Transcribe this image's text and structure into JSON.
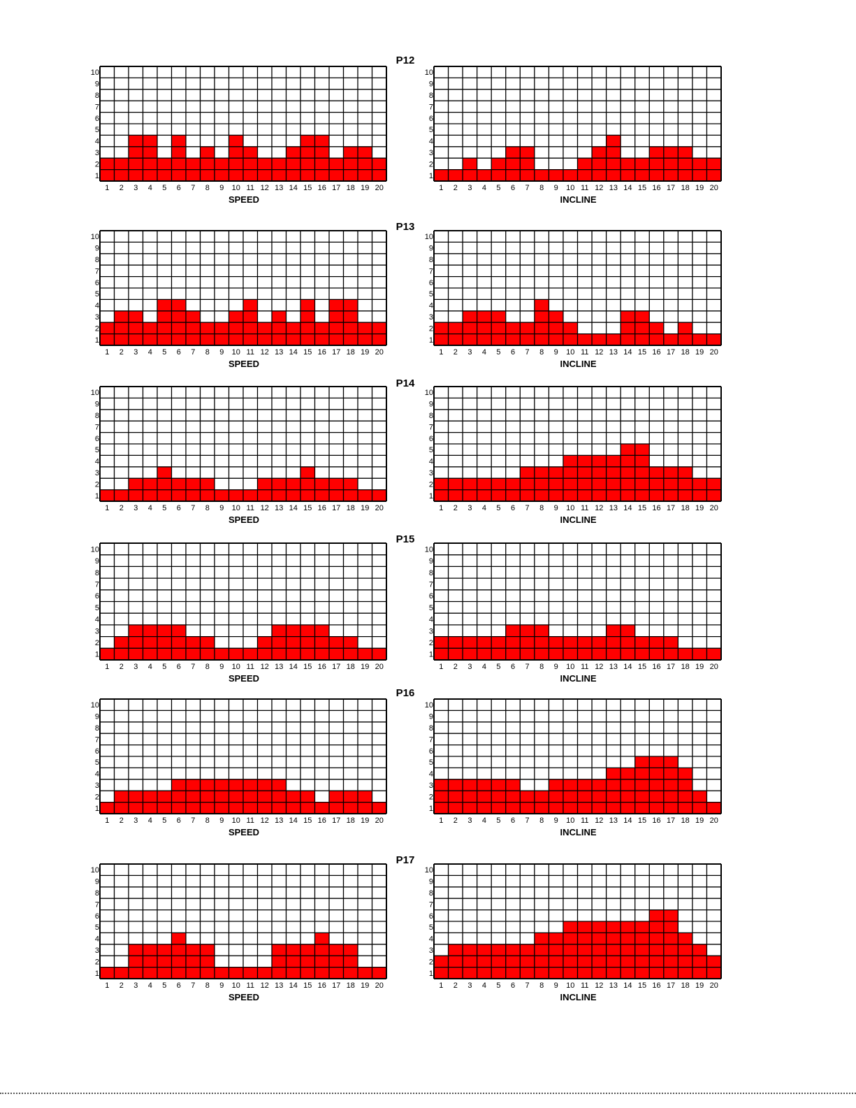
{
  "colors": {
    "fill": "#ff0000",
    "grid": "#000000",
    "text": "#000000"
  },
  "y_ticks": [
    "1",
    "2",
    "3",
    "4",
    "5",
    "6",
    "7",
    "8",
    "9",
    "10"
  ],
  "x_ticks": [
    "1",
    "2",
    "3",
    "4",
    "5",
    "6",
    "7",
    "8",
    "9",
    "10",
    "11",
    "12",
    "13",
    "14",
    "15",
    "16",
    "17",
    "18",
    "19",
    "20"
  ],
  "programs": [
    {
      "title": "P12",
      "speed": [
        2,
        2,
        4,
        4,
        2,
        4,
        2,
        3,
        2,
        4,
        3,
        2,
        2,
        3,
        4,
        4,
        2,
        3,
        3,
        2
      ],
      "incline": [
        1,
        1,
        2,
        1,
        2,
        3,
        3,
        1,
        1,
        1,
        2,
        3,
        4,
        2,
        2,
        3,
        3,
        3,
        2,
        2
      ]
    },
    {
      "title": "P13",
      "speed": [
        2,
        3,
        3,
        2,
        4,
        4,
        3,
        2,
        2,
        3,
        4,
        2,
        3,
        2,
        4,
        2,
        4,
        4,
        2,
        2
      ],
      "incline": [
        2,
        2,
        3,
        3,
        3,
        2,
        2,
        4,
        3,
        2,
        1,
        1,
        1,
        3,
        3,
        2,
        1,
        2,
        1,
        1
      ]
    },
    {
      "title": "P14",
      "speed": [
        1,
        1,
        2,
        2,
        3,
        2,
        2,
        2,
        1,
        1,
        1,
        2,
        2,
        2,
        3,
        2,
        2,
        2,
        1,
        1
      ],
      "incline": [
        2,
        2,
        2,
        2,
        2,
        2,
        3,
        3,
        3,
        4,
        4,
        4,
        4,
        5,
        5,
        3,
        3,
        3,
        2,
        2
      ]
    },
    {
      "title": "P15",
      "speed": [
        1,
        2,
        3,
        3,
        3,
        3,
        2,
        2,
        1,
        1,
        1,
        2,
        3,
        3,
        3,
        3,
        2,
        2,
        1,
        1
      ],
      "incline": [
        2,
        2,
        2,
        2,
        2,
        3,
        3,
        3,
        2,
        2,
        2,
        2,
        3,
        3,
        2,
        2,
        2,
        1,
        1,
        1
      ]
    },
    {
      "title": "P16",
      "speed": [
        1,
        2,
        2,
        2,
        2,
        3,
        3,
        3,
        3,
        3,
        3,
        3,
        3,
        2,
        2,
        1,
        2,
        2,
        2,
        1
      ],
      "incline": [
        3,
        3,
        3,
        3,
        3,
        3,
        2,
        2,
        3,
        3,
        3,
        3,
        4,
        4,
        5,
        5,
        5,
        4,
        2,
        1
      ]
    },
    {
      "title": "P17",
      "speed": [
        1,
        1,
        3,
        3,
        3,
        4,
        3,
        3,
        1,
        1,
        1,
        1,
        3,
        3,
        3,
        4,
        3,
        3,
        1,
        1
      ],
      "incline": [
        2,
        3,
        3,
        3,
        3,
        3,
        3,
        4,
        4,
        5,
        5,
        5,
        5,
        5,
        5,
        6,
        6,
        4,
        3,
        2
      ]
    }
  ],
  "chart_data": [
    {
      "type": "bar",
      "title": "P12",
      "xlabel": "SPEED",
      "categories": [
        "1",
        "2",
        "3",
        "4",
        "5",
        "6",
        "7",
        "8",
        "9",
        "10",
        "11",
        "12",
        "13",
        "14",
        "15",
        "16",
        "17",
        "18",
        "19",
        "20"
      ],
      "values": [
        2,
        2,
        4,
        4,
        2,
        4,
        2,
        3,
        2,
        4,
        3,
        2,
        2,
        3,
        4,
        4,
        2,
        3,
        3,
        2
      ],
      "ylim": [
        0,
        10
      ]
    },
    {
      "type": "bar",
      "title": "P12",
      "xlabel": "INCLINE",
      "categories": [
        "1",
        "2",
        "3",
        "4",
        "5",
        "6",
        "7",
        "8",
        "9",
        "10",
        "11",
        "12",
        "13",
        "14",
        "15",
        "16",
        "17",
        "18",
        "19",
        "20"
      ],
      "values": [
        1,
        1,
        2,
        1,
        2,
        3,
        3,
        1,
        1,
        1,
        2,
        3,
        4,
        2,
        2,
        3,
        3,
        3,
        2,
        2
      ],
      "ylim": [
        0,
        10
      ]
    },
    {
      "type": "bar",
      "title": "P13",
      "xlabel": "SPEED",
      "categories": [
        "1",
        "2",
        "3",
        "4",
        "5",
        "6",
        "7",
        "8",
        "9",
        "10",
        "11",
        "12",
        "13",
        "14",
        "15",
        "16",
        "17",
        "18",
        "19",
        "20"
      ],
      "values": [
        2,
        3,
        3,
        2,
        4,
        4,
        3,
        2,
        2,
        3,
        4,
        2,
        3,
        2,
        4,
        2,
        4,
        4,
        2,
        2
      ],
      "ylim": [
        0,
        10
      ]
    },
    {
      "type": "bar",
      "title": "P13",
      "xlabel": "INCLINE",
      "categories": [
        "1",
        "2",
        "3",
        "4",
        "5",
        "6",
        "7",
        "8",
        "9",
        "10",
        "11",
        "12",
        "13",
        "14",
        "15",
        "16",
        "17",
        "18",
        "19",
        "20"
      ],
      "values": [
        2,
        2,
        3,
        3,
        3,
        2,
        2,
        4,
        3,
        2,
        1,
        1,
        1,
        3,
        3,
        2,
        1,
        2,
        1,
        1
      ],
      "ylim": [
        0,
        10
      ]
    },
    {
      "type": "bar",
      "title": "P14",
      "xlabel": "SPEED",
      "categories": [
        "1",
        "2",
        "3",
        "4",
        "5",
        "6",
        "7",
        "8",
        "9",
        "10",
        "11",
        "12",
        "13",
        "14",
        "15",
        "16",
        "17",
        "18",
        "19",
        "20"
      ],
      "values": [
        1,
        1,
        2,
        2,
        3,
        2,
        2,
        2,
        1,
        1,
        1,
        2,
        2,
        2,
        3,
        2,
        2,
        2,
        1,
        1
      ],
      "ylim": [
        0,
        10
      ]
    },
    {
      "type": "bar",
      "title": "P14",
      "xlabel": "INCLINE",
      "categories": [
        "1",
        "2",
        "3",
        "4",
        "5",
        "6",
        "7",
        "8",
        "9",
        "10",
        "11",
        "12",
        "13",
        "14",
        "15",
        "16",
        "17",
        "18",
        "19",
        "20"
      ],
      "values": [
        2,
        2,
        2,
        2,
        2,
        2,
        3,
        3,
        3,
        4,
        4,
        4,
        4,
        5,
        5,
        3,
        3,
        3,
        2,
        2
      ],
      "ylim": [
        0,
        10
      ]
    },
    {
      "type": "bar",
      "title": "P15",
      "xlabel": "SPEED",
      "categories": [
        "1",
        "2",
        "3",
        "4",
        "5",
        "6",
        "7",
        "8",
        "9",
        "10",
        "11",
        "12",
        "13",
        "14",
        "15",
        "16",
        "17",
        "18",
        "19",
        "20"
      ],
      "values": [
        1,
        2,
        3,
        3,
        3,
        3,
        2,
        2,
        1,
        1,
        1,
        2,
        3,
        3,
        3,
        3,
        2,
        2,
        1,
        1
      ],
      "ylim": [
        0,
        10
      ]
    },
    {
      "type": "bar",
      "title": "P15",
      "xlabel": "INCLINE",
      "categories": [
        "1",
        "2",
        "3",
        "4",
        "5",
        "6",
        "7",
        "8",
        "9",
        "10",
        "11",
        "12",
        "13",
        "14",
        "15",
        "16",
        "17",
        "18",
        "19",
        "20"
      ],
      "values": [
        2,
        2,
        2,
        2,
        2,
        3,
        3,
        3,
        2,
        2,
        2,
        2,
        3,
        3,
        2,
        2,
        2,
        1,
        1,
        1
      ],
      "ylim": [
        0,
        10
      ]
    },
    {
      "type": "bar",
      "title": "P16",
      "xlabel": "SPEED",
      "categories": [
        "1",
        "2",
        "3",
        "4",
        "5",
        "6",
        "7",
        "8",
        "9",
        "10",
        "11",
        "12",
        "13",
        "14",
        "15",
        "16",
        "17",
        "18",
        "19",
        "20"
      ],
      "values": [
        1,
        2,
        2,
        2,
        2,
        3,
        3,
        3,
        3,
        3,
        3,
        3,
        3,
        2,
        2,
        1,
        2,
        2,
        2,
        1
      ],
      "ylim": [
        0,
        10
      ]
    },
    {
      "type": "bar",
      "title": "P16",
      "xlabel": "INCLINE",
      "categories": [
        "1",
        "2",
        "3",
        "4",
        "5",
        "6",
        "7",
        "8",
        "9",
        "10",
        "11",
        "12",
        "13",
        "14",
        "15",
        "16",
        "17",
        "18",
        "19",
        "20"
      ],
      "values": [
        3,
        3,
        3,
        3,
        3,
        3,
        2,
        2,
        3,
        3,
        3,
        3,
        4,
        4,
        5,
        5,
        5,
        4,
        2,
        1
      ],
      "ylim": [
        0,
        10
      ]
    },
    {
      "type": "bar",
      "title": "P17",
      "xlabel": "SPEED",
      "categories": [
        "1",
        "2",
        "3",
        "4",
        "5",
        "6",
        "7",
        "8",
        "9",
        "10",
        "11",
        "12",
        "13",
        "14",
        "15",
        "16",
        "17",
        "18",
        "19",
        "20"
      ],
      "values": [
        1,
        1,
        3,
        3,
        3,
        4,
        3,
        3,
        1,
        1,
        1,
        1,
        3,
        3,
        3,
        4,
        3,
        3,
        1,
        1
      ],
      "ylim": [
        0,
        10
      ]
    },
    {
      "type": "bar",
      "title": "P17",
      "xlabel": "INCLINE",
      "categories": [
        "1",
        "2",
        "3",
        "4",
        "5",
        "6",
        "7",
        "8",
        "9",
        "10",
        "11",
        "12",
        "13",
        "14",
        "15",
        "16",
        "17",
        "18",
        "19",
        "20"
      ],
      "values": [
        2,
        3,
        3,
        3,
        3,
        3,
        3,
        4,
        4,
        5,
        5,
        5,
        5,
        5,
        5,
        6,
        6,
        4,
        3,
        2
      ],
      "ylim": [
        0,
        10
      ]
    }
  ],
  "labels": {
    "speed": "SPEED",
    "incline": "INCLINE"
  }
}
